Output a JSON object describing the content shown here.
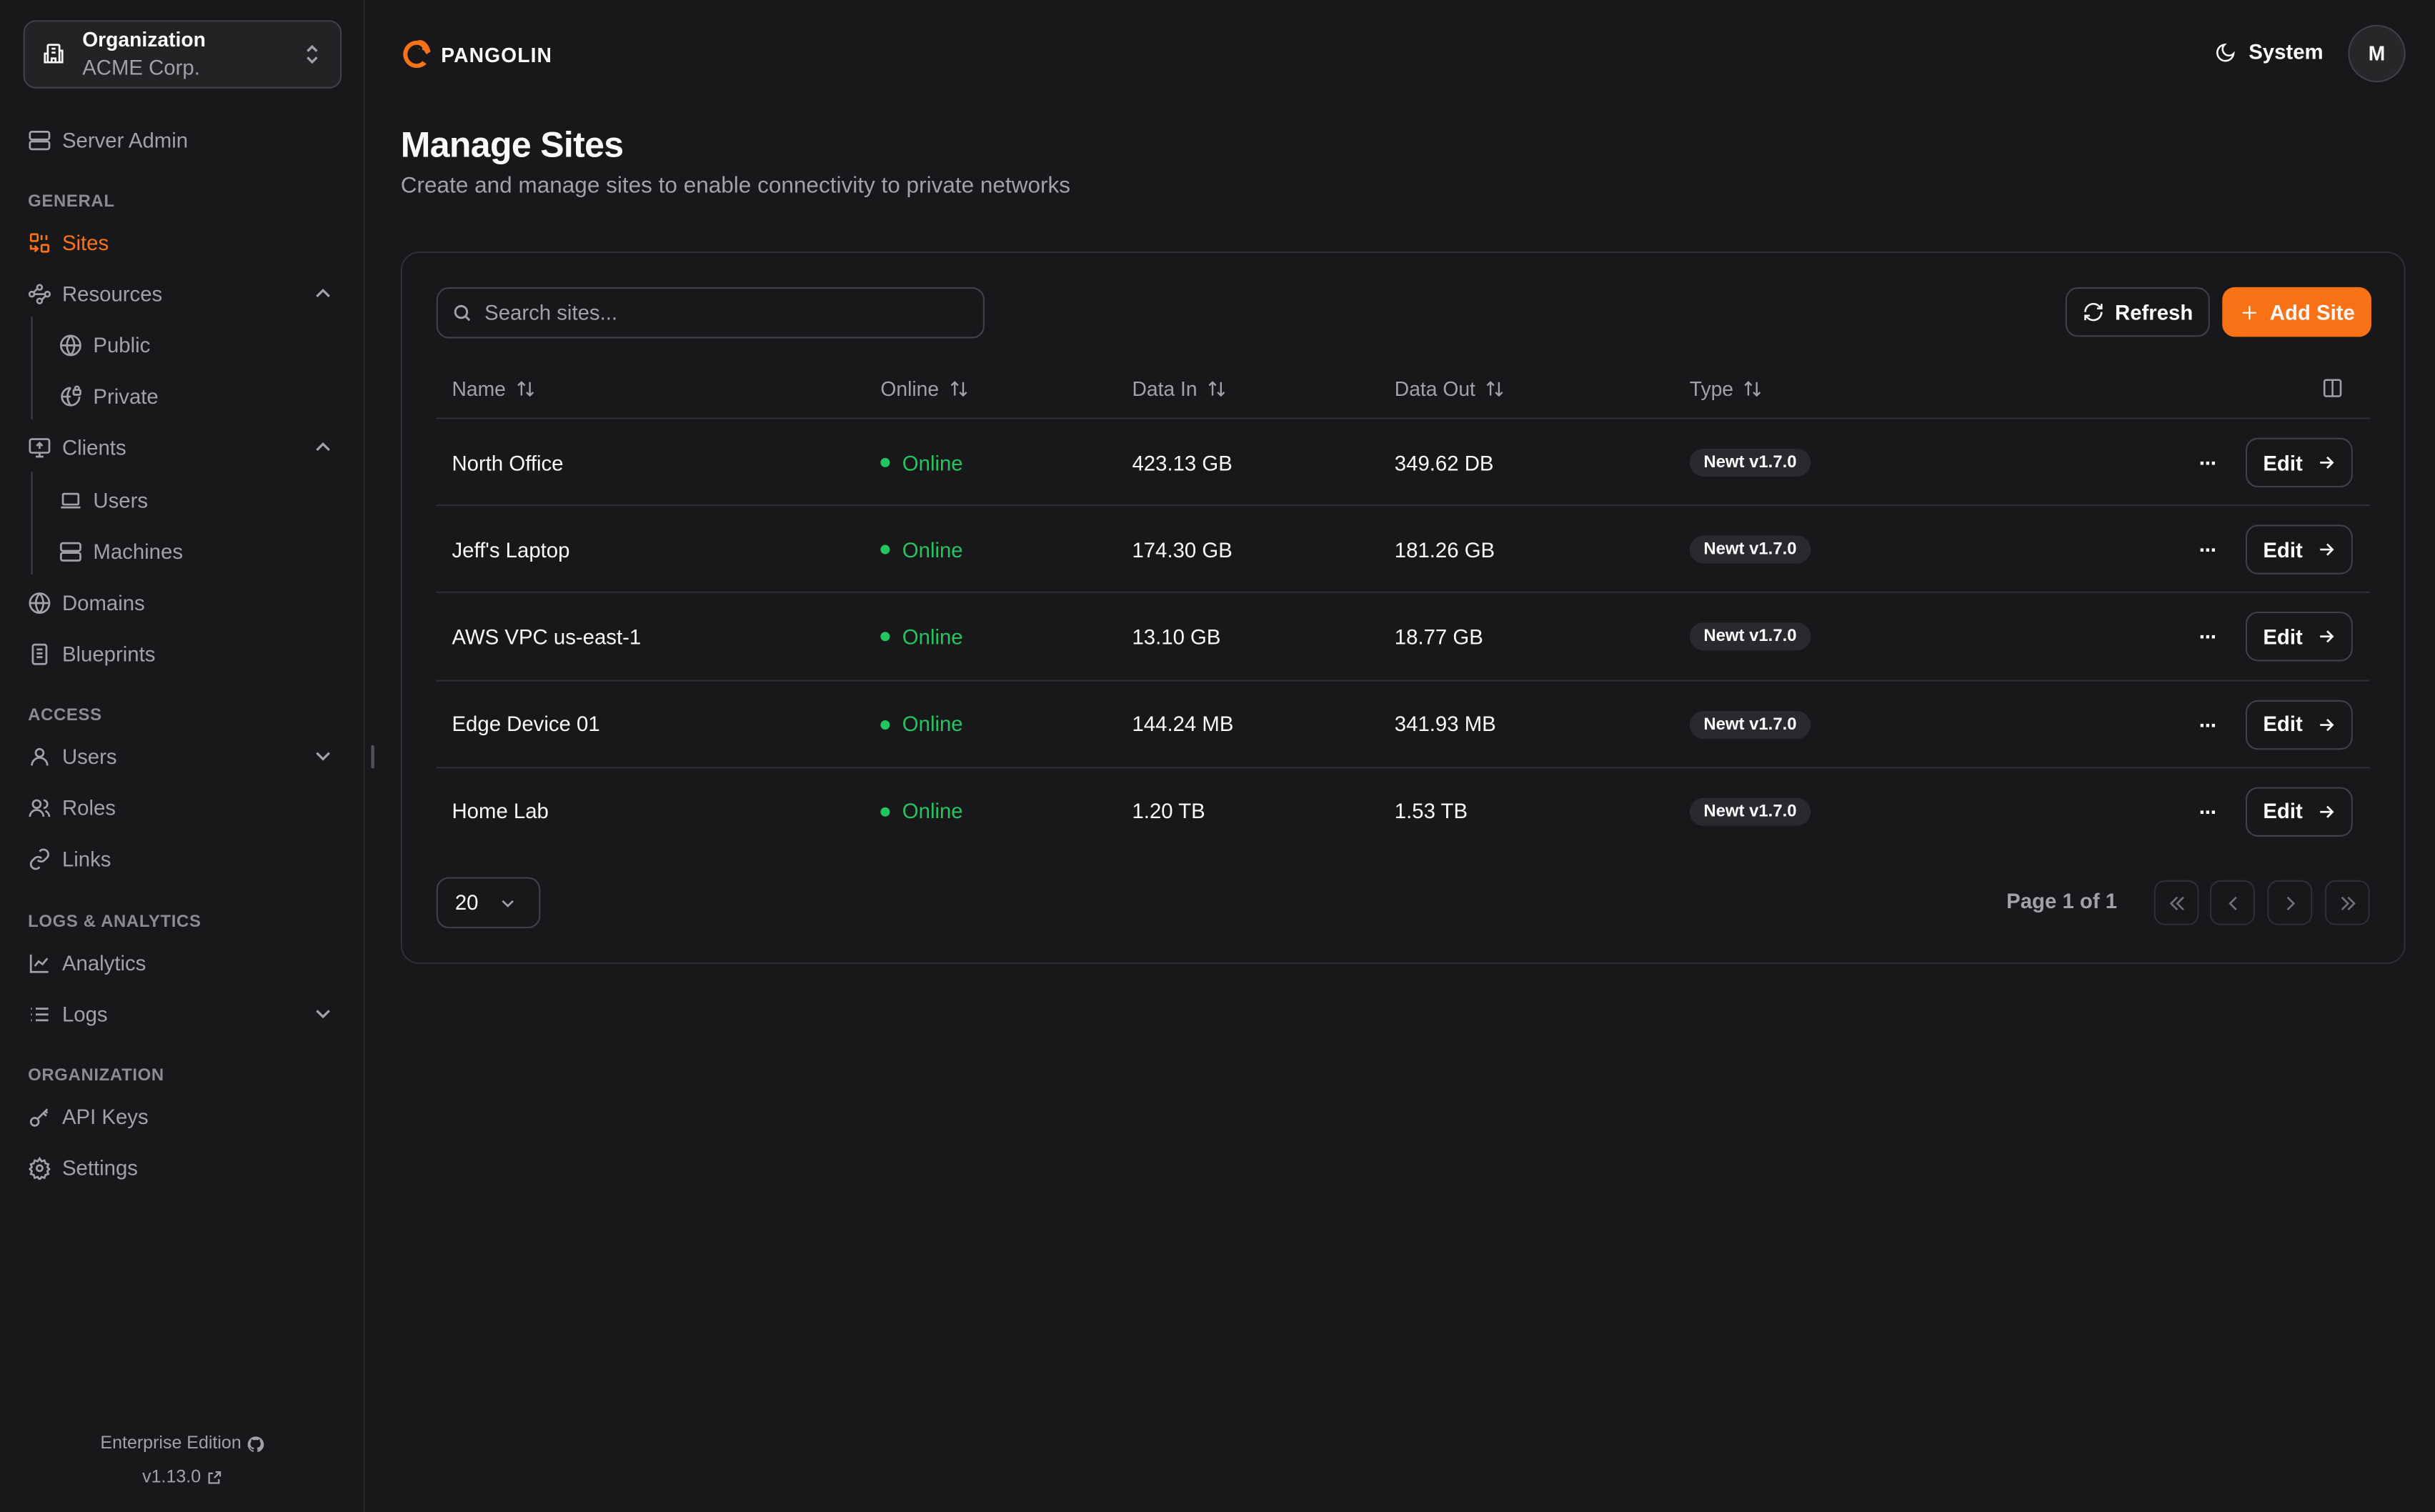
{
  "sidebar": {
    "org_label": "Organization",
    "org_name": "ACME Corp.",
    "server_admin": "Server Admin",
    "sections": {
      "general": "GENERAL",
      "access": "ACCESS",
      "logs": "LOGS & ANALYTICS",
      "organization": "ORGANIZATION"
    },
    "items": {
      "sites": "Sites",
      "resources": "Resources",
      "public": "Public",
      "private": "Private",
      "clients": "Clients",
      "users_client": "Users",
      "machines": "Machines",
      "domains": "Domains",
      "blueprints": "Blueprints",
      "users": "Users",
      "roles": "Roles",
      "links": "Links",
      "analytics": "Analytics",
      "logs": "Logs",
      "api_keys": "API Keys",
      "settings": "Settings"
    },
    "edition": "Enterprise Edition",
    "version": "v1.13.0"
  },
  "header": {
    "brand": "PANGOLIN",
    "theme": "System",
    "avatar": "M"
  },
  "page": {
    "title": "Manage Sites",
    "subtitle": "Create and manage sites to enable connectivity to private networks"
  },
  "toolbar": {
    "search_placeholder": "Search sites...",
    "refresh": "Refresh",
    "add": "Add Site"
  },
  "table": {
    "columns": [
      "Name",
      "Online",
      "Data In",
      "Data Out",
      "Type"
    ],
    "rows": [
      {
        "name": "North Office",
        "online": "Online",
        "data_in": "423.13 GB",
        "data_out": "349.62 DB",
        "type": "Newt v1.7.0",
        "action": "Edit"
      },
      {
        "name": "Jeff's Laptop",
        "online": "Online",
        "data_in": "174.30 GB",
        "data_out": "181.26 GB",
        "type": "Newt v1.7.0",
        "action": "Edit"
      },
      {
        "name": "AWS VPC us-east-1",
        "online": "Online",
        "data_in": "13.10 GB",
        "data_out": "18.77 GB",
        "type": "Newt v1.7.0",
        "action": "Edit"
      },
      {
        "name": "Edge Device 01",
        "online": "Online",
        "data_in": "144.24 MB",
        "data_out": "341.93 MB",
        "type": "Newt v1.7.0",
        "action": "Edit"
      },
      {
        "name": "Home Lab",
        "online": "Online",
        "data_in": "1.20 TB",
        "data_out": "1.53 TB",
        "type": "Newt v1.7.0",
        "action": "Edit"
      }
    ]
  },
  "pagination": {
    "page_size": "20",
    "page_text": "Page 1 of 1"
  },
  "colors": {
    "accent": "#f97316",
    "online": "#22c55e",
    "background": "#18181b"
  }
}
